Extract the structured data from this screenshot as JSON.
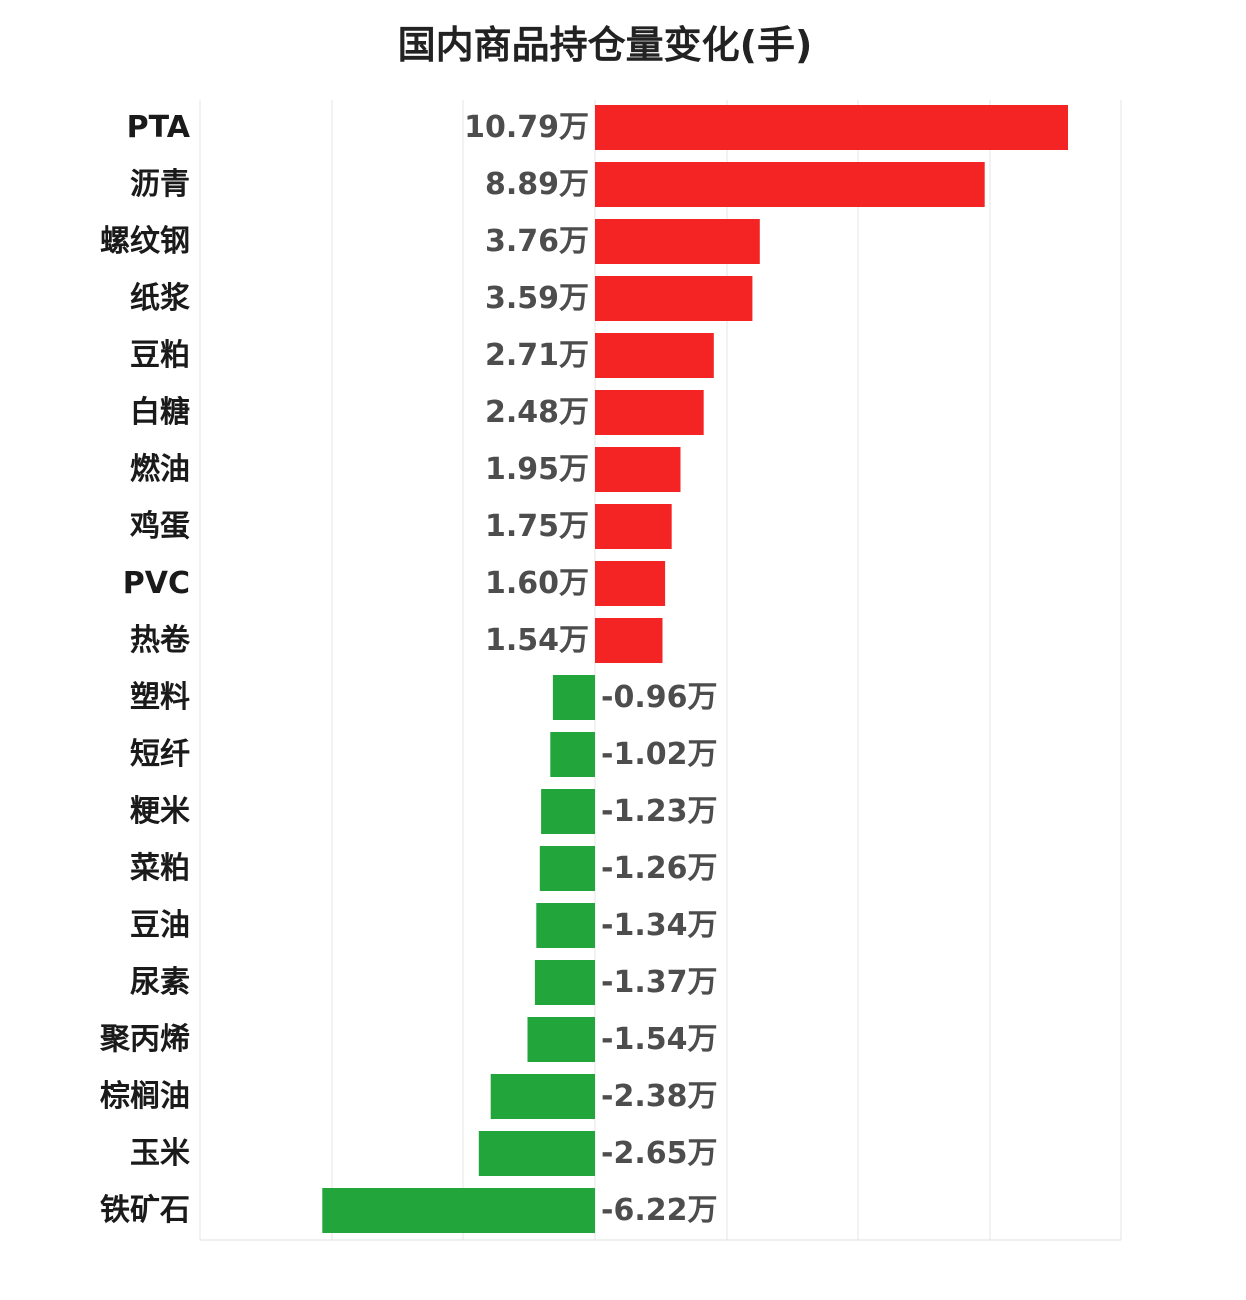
{
  "chart_data": {
    "type": "bar",
    "orientation": "horizontal",
    "title": "国内商品持仓量变化(手)",
    "xlabel": "",
    "ylabel": "",
    "unit": "万",
    "xlim": [
      -9,
      10.79
    ],
    "grid": true,
    "legend": "none",
    "colors": {
      "positive": "#f52424",
      "negative": "#22a53a"
    },
    "categories": [
      "PTA",
      "沥青",
      "螺纹钢",
      "纸浆",
      "豆粕",
      "白糖",
      "燃油",
      "鸡蛋",
      "PVC",
      "热卷",
      "塑料",
      "短纤",
      "粳米",
      "菜粕",
      "豆油",
      "尿素",
      "聚丙烯",
      "棕榈油",
      "玉米",
      "铁矿石"
    ],
    "values": [
      10.79,
      8.89,
      3.76,
      3.59,
      2.71,
      2.48,
      1.95,
      1.75,
      1.6,
      1.54,
      -0.96,
      -1.02,
      -1.23,
      -1.26,
      -1.34,
      -1.37,
      -1.54,
      -2.38,
      -2.65,
      -6.22
    ],
    "value_labels": [
      "10.79万",
      "8.89万",
      "3.76万",
      "3.59万",
      "2.71万",
      "2.48万",
      "1.95万",
      "1.75万",
      "1.60万",
      "1.54万",
      "-0.96万",
      "-1.02万",
      "-1.23万",
      "-1.26万",
      "-1.34万",
      "-1.37万",
      "-1.54万",
      "-2.38万",
      "-2.65万",
      "-6.22万"
    ]
  }
}
